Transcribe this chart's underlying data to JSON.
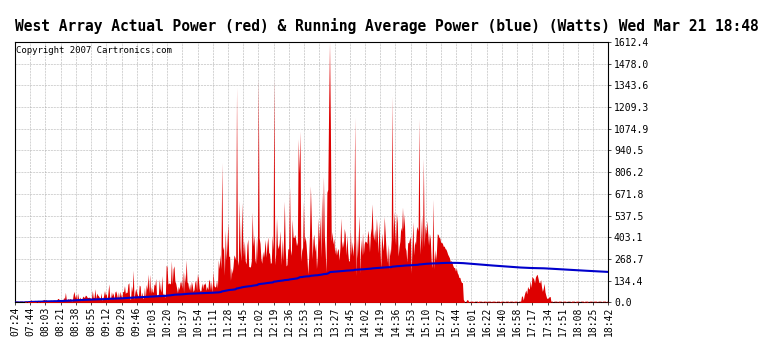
{
  "title": "West Array Actual Power (red) & Running Average Power (blue) (Watts) Wed Mar 21 18:48",
  "copyright": "Copyright 2007 Cartronics.com",
  "ylabel_values": [
    0.0,
    134.4,
    268.7,
    403.1,
    537.5,
    671.8,
    806.2,
    940.5,
    1074.9,
    1209.3,
    1343.6,
    1478.0,
    1612.4
  ],
  "ymax": 1612.4,
  "ymin": 0.0,
  "x_tick_labels": [
    "07:24",
    "07:44",
    "08:03",
    "08:21",
    "08:38",
    "08:55",
    "09:12",
    "09:29",
    "09:46",
    "10:03",
    "10:20",
    "10:37",
    "10:54",
    "11:11",
    "11:28",
    "11:45",
    "12:02",
    "12:19",
    "12:36",
    "12:53",
    "13:10",
    "13:27",
    "13:45",
    "14:02",
    "14:19",
    "14:36",
    "14:53",
    "15:10",
    "15:27",
    "15:44",
    "16:01",
    "16:22",
    "16:40",
    "16:58",
    "17:17",
    "17:34",
    "17:51",
    "18:08",
    "18:25",
    "18:42"
  ],
  "background_color": "#ffffff",
  "plot_bg_color": "#ffffff",
  "grid_color": "#aaaaaa",
  "bar_color": "#dd0000",
  "line_color": "#0000cc",
  "title_fontsize": 10.5,
  "tick_fontsize": 7,
  "dashed_line_color": "#ff9999",
  "copyright_fontsize": 6.5
}
